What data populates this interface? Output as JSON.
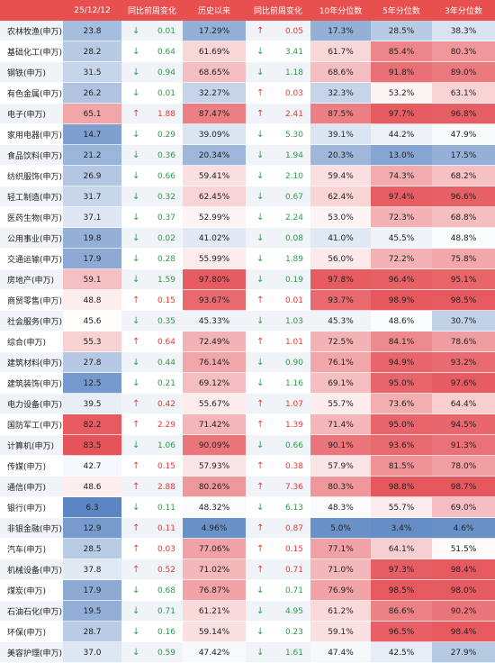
{
  "colors": {
    "header_bg": "#e8504f",
    "header_text": "#ffffff",
    "up": "#e83a33",
    "down": "#2e9b4e",
    "high": "#e5545a",
    "mid": "#ffffff",
    "low": "#5b86c2"
  },
  "chart_data": {
    "type": "heatmap",
    "columns": [
      "",
      "25/12/12",
      "同比前周变化",
      "历史以来",
      "同比前周变化",
      "10年分位数",
      "5年分位数",
      "3年分位数"
    ],
    "rows": [
      {
        "industry": "农林牧渔(申万)",
        "value": "23.8",
        "chg1_dir": "down",
        "chg1": "0.01",
        "hist": "17.29%",
        "chg2_dir": "up",
        "chg2": "0.05",
        "y10": "17.3%",
        "y5": "28.5%",
        "y3": "38.3%"
      },
      {
        "industry": "基础化工(申万)",
        "value": "28.2",
        "chg1_dir": "down",
        "chg1": "0.64",
        "hist": "61.69%",
        "chg2_dir": "down",
        "chg2": "3.41",
        "y10": "61.7%",
        "y5": "85.4%",
        "y3": "80.3%"
      },
      {
        "industry": "钢铁(申万)",
        "value": "31.5",
        "chg1_dir": "down",
        "chg1": "0.94",
        "hist": "68.65%",
        "chg2_dir": "down",
        "chg2": "1.18",
        "y10": "68.6%",
        "y5": "91.8%",
        "y3": "89.0%"
      },
      {
        "industry": "有色金属(申万)",
        "value": "26.2",
        "chg1_dir": "down",
        "chg1": "0.01",
        "hist": "32.27%",
        "chg2_dir": "up",
        "chg2": "0.03",
        "y10": "32.3%",
        "y5": "53.2%",
        "y3": "63.1%"
      },
      {
        "industry": "电子(申万)",
        "value": "65.1",
        "chg1_dir": "up",
        "chg1": "1.88",
        "hist": "87.47%",
        "chg2_dir": "up",
        "chg2": "2.41",
        "y10": "87.5%",
        "y5": "97.7%",
        "y3": "96.8%"
      },
      {
        "industry": "家用电器(申万)",
        "value": "14.7",
        "chg1_dir": "down",
        "chg1": "0.29",
        "hist": "39.09%",
        "chg2_dir": "down",
        "chg2": "5.30",
        "y10": "39.1%",
        "y5": "44.2%",
        "y3": "47.9%"
      },
      {
        "industry": "食品饮料(申万)",
        "value": "21.2",
        "chg1_dir": "down",
        "chg1": "0.36",
        "hist": "20.34%",
        "chg2_dir": "down",
        "chg2": "1.94",
        "y10": "20.3%",
        "y5": "13.0%",
        "y3": "17.5%"
      },
      {
        "industry": "纺织服饰(申万)",
        "value": "26.9",
        "chg1_dir": "down",
        "chg1": "0.66",
        "hist": "59.41%",
        "chg2_dir": "down",
        "chg2": "2.10",
        "y10": "59.4%",
        "y5": "74.3%",
        "y3": "68.2%"
      },
      {
        "industry": "轻工制造(申万)",
        "value": "31.7",
        "chg1_dir": "down",
        "chg1": "0.32",
        "hist": "62.45%",
        "chg2_dir": "down",
        "chg2": "0.67",
        "y10": "62.4%",
        "y5": "97.4%",
        "y3": "96.6%"
      },
      {
        "industry": "医药生物(申万)",
        "value": "37.1",
        "chg1_dir": "down",
        "chg1": "0.37",
        "hist": "52.99%",
        "chg2_dir": "down",
        "chg2": "2.24",
        "y10": "53.0%",
        "y5": "72.3%",
        "y3": "68.8%"
      },
      {
        "industry": "公用事业(申万)",
        "value": "19.8",
        "chg1_dir": "down",
        "chg1": "0.02",
        "hist": "41.02%",
        "chg2_dir": "down",
        "chg2": "0.08",
        "y10": "41.0%",
        "y5": "45.5%",
        "y3": "48.8%"
      },
      {
        "industry": "交通运输(申万)",
        "value": "17.9",
        "chg1_dir": "down",
        "chg1": "0.28",
        "hist": "55.99%",
        "chg2_dir": "down",
        "chg2": "1.89",
        "y10": "56.0%",
        "y5": "72.2%",
        "y3": "75.8%"
      },
      {
        "industry": "房地产(申万)",
        "value": "59.1",
        "chg1_dir": "down",
        "chg1": "1.59",
        "hist": "97.80%",
        "chg2_dir": "down",
        "chg2": "0.19",
        "y10": "97.8%",
        "y5": "96.4%",
        "y3": "95.1%"
      },
      {
        "industry": "商贸零售(申万)",
        "value": "48.8",
        "chg1_dir": "up",
        "chg1": "0.15",
        "hist": "93.67%",
        "chg2_dir": "up",
        "chg2": "0.01",
        "y10": "93.7%",
        "y5": "98.9%",
        "y3": "98.5%"
      },
      {
        "industry": "社会服务(申万)",
        "value": "45.6",
        "chg1_dir": "down",
        "chg1": "0.35",
        "hist": "45.33%",
        "chg2_dir": "down",
        "chg2": "1.03",
        "y10": "45.3%",
        "y5": "48.6%",
        "y3": "30.7%"
      },
      {
        "industry": "综合(申万)",
        "value": "55.3",
        "chg1_dir": "up",
        "chg1": "0.64",
        "hist": "72.49%",
        "chg2_dir": "up",
        "chg2": "1.01",
        "y10": "72.5%",
        "y5": "84.1%",
        "y3": "78.6%"
      },
      {
        "industry": "建筑材料(申万)",
        "value": "27.8",
        "chg1_dir": "down",
        "chg1": "0.44",
        "hist": "76.14%",
        "chg2_dir": "down",
        "chg2": "0.90",
        "y10": "76.1%",
        "y5": "94.9%",
        "y3": "93.2%"
      },
      {
        "industry": "建筑装饰(申万)",
        "value": "12.5",
        "chg1_dir": "down",
        "chg1": "0.21",
        "hist": "69.12%",
        "chg2_dir": "down",
        "chg2": "1.16",
        "y10": "69.1%",
        "y5": "95.0%",
        "y3": "97.6%"
      },
      {
        "industry": "电力设备(申万)",
        "value": "39.5",
        "chg1_dir": "up",
        "chg1": "0.42",
        "hist": "55.67%",
        "chg2_dir": "up",
        "chg2": "1.07",
        "y10": "55.7%",
        "y5": "73.6%",
        "y3": "64.4%"
      },
      {
        "industry": "国防军工(申万)",
        "value": "82.2",
        "chg1_dir": "up",
        "chg1": "2.29",
        "hist": "71.42%",
        "chg2_dir": "up",
        "chg2": "1.39",
        "y10": "71.4%",
        "y5": "95.0%",
        "y3": "94.5%"
      },
      {
        "industry": "计算机(申万)",
        "value": "83.5",
        "chg1_dir": "down",
        "chg1": "1.06",
        "hist": "90.09%",
        "chg2_dir": "down",
        "chg2": "0.66",
        "y10": "90.1%",
        "y5": "93.6%",
        "y3": "91.3%"
      },
      {
        "industry": "传媒(申万)",
        "value": "42.7",
        "chg1_dir": "up",
        "chg1": "0.15",
        "hist": "57.93%",
        "chg2_dir": "up",
        "chg2": "0.38",
        "y10": "57.9%",
        "y5": "81.5%",
        "y3": "78.0%"
      },
      {
        "industry": "通信(申万)",
        "value": "48.6",
        "chg1_dir": "up",
        "chg1": "2.88",
        "hist": "80.26%",
        "chg2_dir": "up",
        "chg2": "7.36",
        "y10": "80.3%",
        "y5": "98.8%",
        "y3": "98.7%"
      },
      {
        "industry": "银行(申万)",
        "value": "6.3",
        "chg1_dir": "down",
        "chg1": "0.11",
        "hist": "48.32%",
        "chg2_dir": "down",
        "chg2": "6.13",
        "y10": "48.3%",
        "y5": "55.7%",
        "y3": "69.0%"
      },
      {
        "industry": "非银金融(申万)",
        "value": "12.9",
        "chg1_dir": "up",
        "chg1": "0.11",
        "hist": "4.96%",
        "chg2_dir": "up",
        "chg2": "0.87",
        "y10": "5.0%",
        "y5": "3.4%",
        "y3": "4.6%"
      },
      {
        "industry": "汽车(申万)",
        "value": "28.5",
        "chg1_dir": "up",
        "chg1": "0.03",
        "hist": "77.06%",
        "chg2_dir": "up",
        "chg2": "0.15",
        "y10": "77.1%",
        "y5": "64.1%",
        "y3": "51.5%"
      },
      {
        "industry": "机械设备(申万)",
        "value": "37.8",
        "chg1_dir": "up",
        "chg1": "0.52",
        "hist": "71.02%",
        "chg2_dir": "up",
        "chg2": "0.71",
        "y10": "71.0%",
        "y5": "97.3%",
        "y3": "98.4%"
      },
      {
        "industry": "煤炭(申万)",
        "value": "17.9",
        "chg1_dir": "down",
        "chg1": "0.68",
        "hist": "76.87%",
        "chg2_dir": "down",
        "chg2": "0.71",
        "y10": "76.9%",
        "y5": "98.5%",
        "y3": "98.0%"
      },
      {
        "industry": "石油石化(申万)",
        "value": "19.5",
        "chg1_dir": "down",
        "chg1": "0.71",
        "hist": "61.21%",
        "chg2_dir": "down",
        "chg2": "4.95",
        "y10": "61.2%",
        "y5": "86.6%",
        "y3": "90.2%"
      },
      {
        "industry": "环保(申万)",
        "value": "28.7",
        "chg1_dir": "down",
        "chg1": "0.16",
        "hist": "59.14%",
        "chg2_dir": "down",
        "chg2": "0.23",
        "y10": "59.1%",
        "y5": "96.5%",
        "y3": "98.4%"
      },
      {
        "industry": "美容护理(申万)",
        "value": "37.0",
        "chg1_dir": "down",
        "chg1": "0.59",
        "hist": "47.42%",
        "chg2_dir": "down",
        "chg2": "1.61",
        "y10": "47.4%",
        "y5": "42.5%",
        "y3": "27.9%"
      }
    ]
  }
}
